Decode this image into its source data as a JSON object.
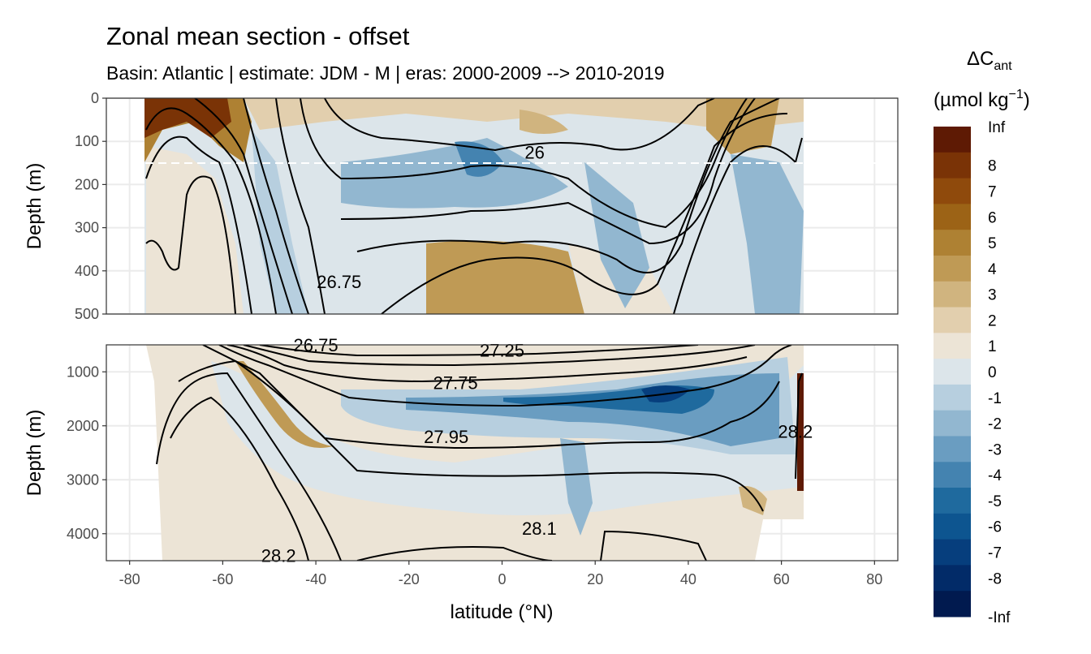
{
  "title": "Zonal mean section - offset",
  "subtitle": "Basin: Atlantic | estimate: JDM - M | eras: 2000-2009 --> 2010-2019",
  "legend": {
    "title_delta": "ΔC",
    "title_sub": "ant",
    "unit_main": "(µmol kg",
    "unit_exp": "−1",
    "unit_close": ")",
    "labels": [
      "Inf",
      "8",
      "7",
      "6",
      "5",
      "4",
      "3",
      "2",
      "1",
      "0",
      "-1",
      "-2",
      "-3",
      "-4",
      "-5",
      "-6",
      "-7",
      "-8",
      "-Inf"
    ],
    "colors": [
      "#5e1a04",
      "#7a3306",
      "#8f4a0c",
      "#9c6316",
      "#ae8133",
      "#bf9a55",
      "#d0b47f",
      "#e2cfae",
      "#ece4d6",
      "#dce5ea",
      "#b7cfdf",
      "#92b7d0",
      "#6a9dc1",
      "#4483b0",
      "#1f6a9e",
      "#0d5590",
      "#063e7d",
      "#022b68",
      "#011a4f"
    ]
  },
  "chart_data": {
    "type": "heatmap",
    "title": "Zonal mean section - offset",
    "xlabel": "latitude (°N)",
    "xlim": [
      -85,
      85
    ],
    "x_ticks": [
      "-80",
      "-60",
      "-40",
      "-20",
      "0",
      "20",
      "40",
      "60",
      "80"
    ],
    "data_extent_lat": [
      -77,
      64
    ],
    "reference_depth_line_m": 150,
    "panels": [
      {
        "name": "upper",
        "ylabel": "Depth (m)",
        "ylim": [
          0,
          500
        ],
        "y_ticks": [
          "0",
          "100",
          "200",
          "300",
          "400",
          "500"
        ],
        "contour_labels": [
          {
            "label": "26",
            "lat": 7,
            "depth": 125
          },
          {
            "label": "26.75",
            "lat": -35,
            "depth": 425
          }
        ]
      },
      {
        "name": "lower",
        "ylabel": "Depth (m)",
        "ylim": [
          500,
          4500
        ],
        "y_ticks": [
          "1000",
          "2000",
          "3000",
          "4000"
        ],
        "contour_labels": [
          {
            "label": "26.75",
            "lat": -40,
            "depth": 500
          },
          {
            "label": "27.25",
            "lat": 0,
            "depth": 600
          },
          {
            "label": "27.75",
            "lat": -10,
            "depth": 1200
          },
          {
            "label": "27.95",
            "lat": -12,
            "depth": 2200
          },
          {
            "label": "28.1",
            "lat": 8,
            "depth": 3900
          },
          {
            "label": "28.2",
            "lat": -48,
            "depth": 4400
          },
          {
            "label": "28.2",
            "lat": 63,
            "depth": 2100
          }
        ]
      }
    ],
    "legend_title": "ΔCant (µmol kg−1)",
    "color_scale_levels": [
      "Inf",
      "8",
      "7",
      "6",
      "5",
      "4",
      "3",
      "2",
      "1",
      "0",
      "-1",
      "-2",
      "-3",
      "-4",
      "-5",
      "-6",
      "-7",
      "-8",
      "-Inf"
    ]
  }
}
